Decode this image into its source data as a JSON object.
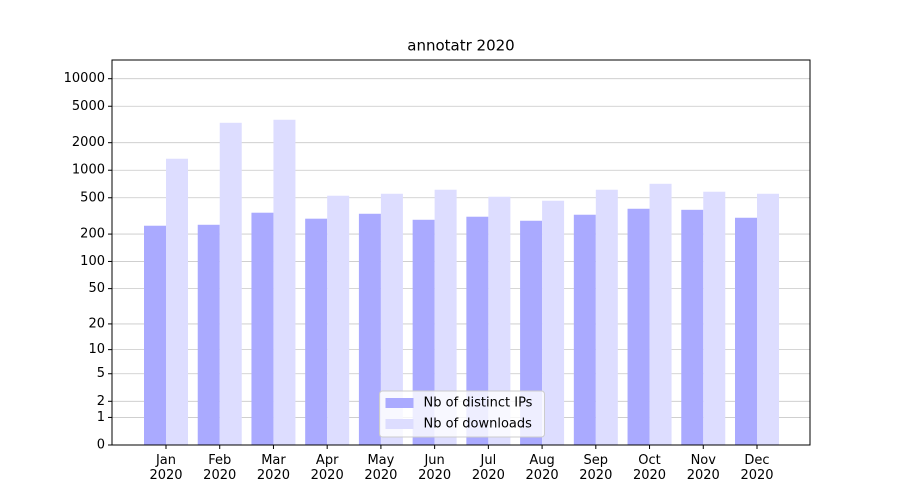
{
  "chart_data": {
    "type": "bar",
    "title": "annotatr 2020",
    "categories": [
      "Jan\n2020",
      "Feb\n2020",
      "Mar\n2020",
      "Apr\n2020",
      "May\n2020",
      "Jun\n2020",
      "Jul\n2020",
      "Aug\n2020",
      "Sep\n2020",
      "Oct\n2020",
      "Nov\n2020",
      "Dec\n2020"
    ],
    "series": [
      {
        "name": "Nb of distinct IPs",
        "color": "#aaaaff",
        "values": [
          247,
          253,
          343,
          295,
          334,
          287,
          310,
          280,
          326,
          379,
          369,
          302
        ]
      },
      {
        "name": "Nb of downloads",
        "color": "#ddddff",
        "values": [
          1335,
          3300,
          3560,
          526,
          553,
          612,
          513,
          464,
          612,
          711,
          582,
          553
        ]
      }
    ],
    "yscale": "symlog",
    "ylim": [
      0,
      16000
    ],
    "yticks": [
      0,
      1,
      2,
      5,
      10,
      20,
      50,
      100,
      200,
      500,
      1000,
      2000,
      5000,
      10000
    ],
    "grid": true,
    "legend": "lower center"
  }
}
